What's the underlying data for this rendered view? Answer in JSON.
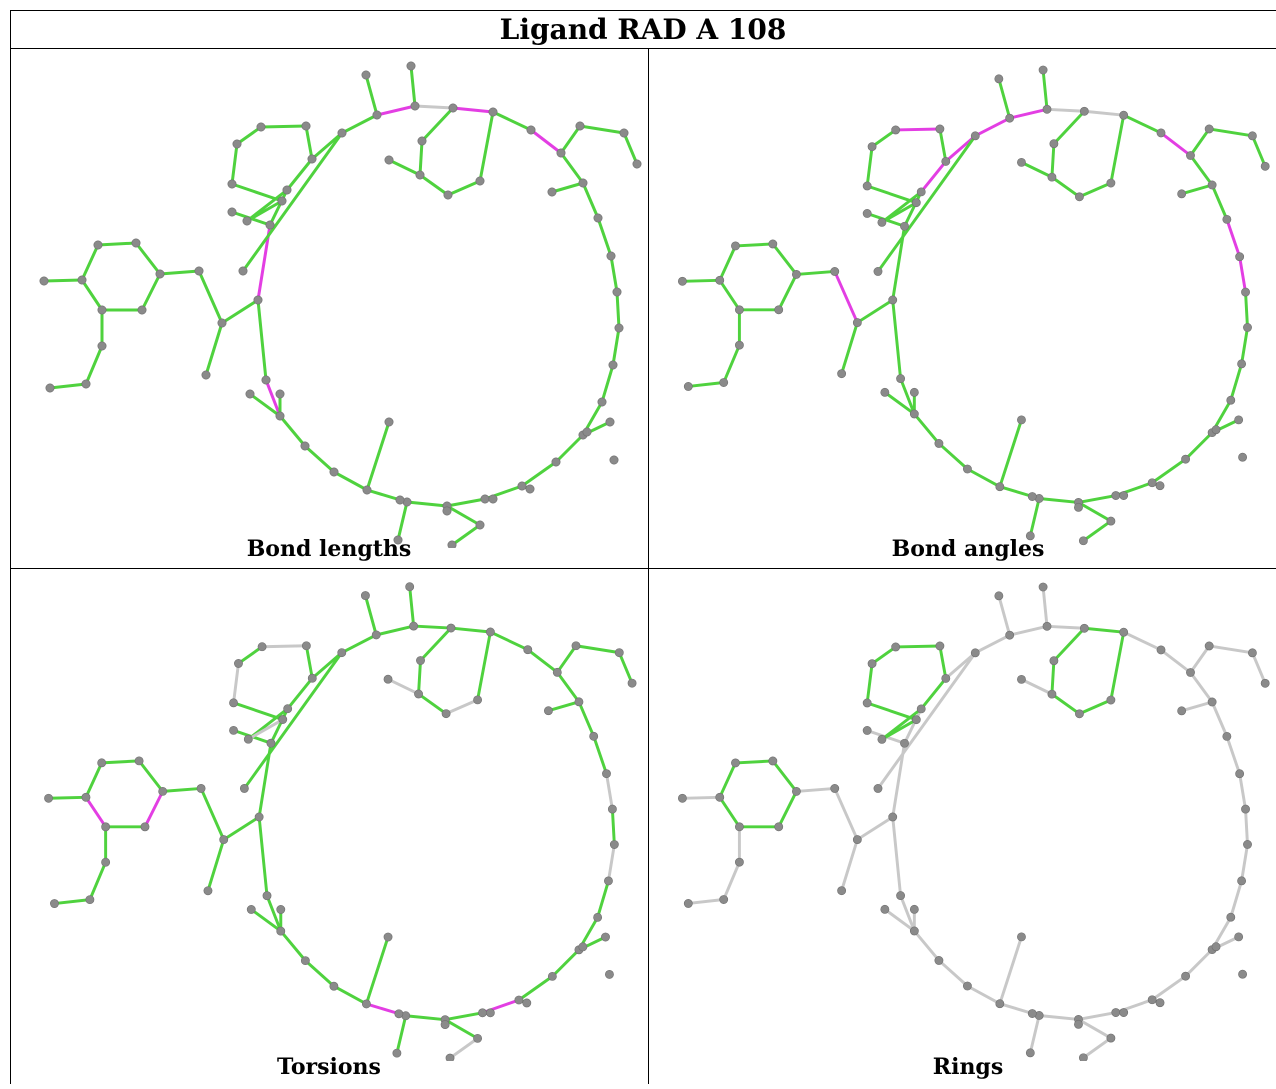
{
  "title": "Ligand RAD A 108",
  "panels": [
    {
      "id": "bond-lengths",
      "caption": "Bond lengths",
      "highlight": [
        [
          5,
          6
        ],
        [
          7,
          8
        ],
        [
          9,
          10
        ],
        [
          27,
          28
        ],
        [
          0,
          1
        ],
        [
          72,
          73
        ]
      ],
      "gray": [
        [
          6,
          7
        ],
        [
          8,
          50
        ]
      ]
    },
    {
      "id": "bond-angles",
      "caption": "Bond angles",
      "highlight": [
        [
          2,
          3
        ],
        [
          3,
          4
        ],
        [
          4,
          5
        ],
        [
          5,
          6
        ],
        [
          3,
          68
        ],
        [
          9,
          10
        ],
        [
          12,
          13
        ],
        [
          13,
          14
        ],
        [
          14,
          19
        ],
        [
          58,
          59
        ],
        [
          59,
          60
        ],
        [
          61,
          62
        ],
        [
          72,
          73
        ],
        [
          73,
          74
        ],
        [
          28,
          29
        ],
        [
          29,
          30
        ],
        [
          55,
          50
        ],
        [
          42,
          43
        ],
        [
          43,
          44
        ]
      ],
      "gray": [
        [
          6,
          7
        ],
        [
          7,
          8
        ],
        [
          7,
          51
        ],
        [
          12,
          59
        ]
      ]
    },
    {
      "id": "torsions",
      "caption": "Torsions",
      "highlight": [
        [
          13,
          17
        ],
        [
          20,
          21
        ],
        [
          31,
          32
        ],
        [
          33,
          34
        ],
        [
          35,
          37
        ],
        [
          23,
          24
        ]
      ],
      "gray": [
        [
          58,
          59
        ],
        [
          59,
          60
        ],
        [
          60,
          61
        ],
        [
          61,
          62
        ],
        [
          62,
          63
        ],
        [
          63,
          58
        ],
        [
          7,
          51
        ],
        [
          51,
          52
        ],
        [
          52,
          53
        ],
        [
          53,
          54
        ],
        [
          54,
          55
        ],
        [
          55,
          50
        ],
        [
          64,
          65
        ],
        [
          64,
          66
        ],
        [
          13,
          14
        ],
        [
          13,
          15
        ],
        [
          15,
          16
        ],
        [
          68,
          3
        ],
        [
          67,
          2
        ],
        [
          69,
          70
        ],
        [
          71,
          72
        ],
        [
          72,
          73
        ],
        [
          73,
          74
        ],
        [
          74,
          75
        ],
        [
          75,
          70
        ],
        [
          71,
          76
        ],
        [
          76,
          77
        ],
        [
          78,
          71
        ],
        [
          79,
          9
        ],
        [
          39,
          40
        ],
        [
          41,
          42
        ],
        [
          43,
          44
        ],
        [
          45,
          46
        ],
        [
          47,
          48
        ],
        [
          48,
          49
        ]
      ]
    },
    {
      "id": "rings",
      "caption": "Rings",
      "ring_only": true
    }
  ],
  "colors": {
    "ok": "#4fd23e",
    "outlier": "#e33ee3",
    "neutral": "#c8c8c8",
    "atom": "#8a8a8a"
  }
}
